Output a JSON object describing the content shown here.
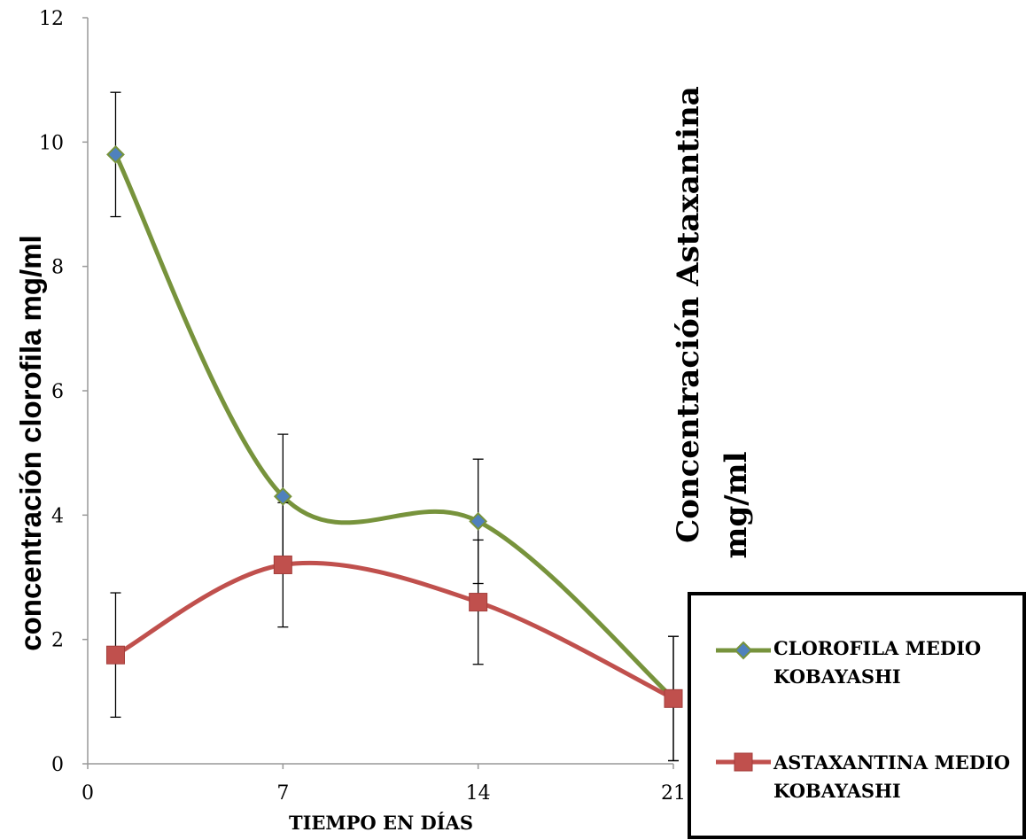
{
  "chart_data": {
    "type": "line",
    "x": [
      1,
      7,
      14,
      21
    ],
    "xticks": [
      "0",
      "7",
      "14",
      "21"
    ],
    "yticks": [
      "0",
      "2",
      "4",
      "6",
      "8",
      "10",
      "12"
    ],
    "xlim": [
      0,
      21
    ],
    "ylim": [
      0,
      12
    ],
    "xlabel": "TIEMPO EN DÍAS",
    "ylabel": "concentración clorofila  mg/ml",
    "ylabel_right_line1": "Concentración Astaxantina",
    "ylabel_right_line2": "mg/ml",
    "grid": false,
    "legend_position": "right",
    "series": [
      {
        "name": "CLOROFILA MEDIO KOBAYASHI",
        "name_line1": "CLOROFILA MEDIO",
        "name_line2": "KOBAYASHI",
        "x": [
          1,
          7,
          14,
          21
        ],
        "values": [
          9.8,
          4.3,
          3.9,
          1.05
        ],
        "error": [
          1.0,
          1.0,
          1.0,
          1.0
        ],
        "color": "#77933C",
        "marker": "diamond"
      },
      {
        "name": "ASTAXANTINA MEDIO KOBAYASHI",
        "name_line1": "ASTAXANTINA MEDIO",
        "name_line2": "KOBAYASHI",
        "x": [
          1,
          7,
          14,
          21
        ],
        "values": [
          1.75,
          3.2,
          2.6,
          1.05
        ],
        "error": [
          1.0,
          1.0,
          1.0,
          1.0
        ],
        "color": "#C0504D",
        "marker": "square"
      }
    ]
  }
}
